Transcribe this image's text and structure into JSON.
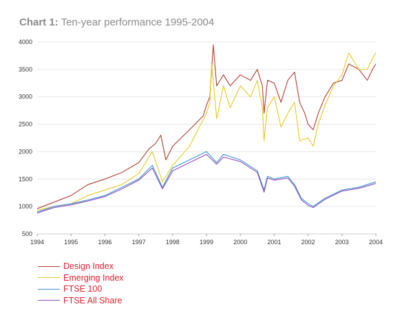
{
  "title": {
    "prefix": "Chart 1:",
    "text": "Ten-year performance 1995-2004"
  },
  "chart_data": {
    "type": "line",
    "title": "Ten-year performance 1995-2004",
    "xlabel": "",
    "ylabel": "",
    "xlim": [
      1994,
      2004
    ],
    "ylim": [
      500,
      4000
    ],
    "x_ticks": [
      "1994",
      "1995",
      "1996",
      "1997",
      "1998",
      "1999",
      "2000",
      "2001",
      "2002",
      "2003",
      "2004"
    ],
    "y_ticks": [
      "500",
      "1000",
      "1500",
      "2000",
      "2500",
      "3000",
      "3500",
      "4000"
    ],
    "grid": true,
    "legend_position": "bottom-left",
    "series": [
      {
        "name": "Design Index",
        "color": "#b03a2e",
        "points": [
          [
            1994.0,
            960
          ],
          [
            1994.5,
            1080
          ],
          [
            1995.0,
            1200
          ],
          [
            1995.5,
            1400
          ],
          [
            1996.0,
            1500
          ],
          [
            1996.5,
            1620
          ],
          [
            1997.0,
            1800
          ],
          [
            1997.3,
            2050
          ],
          [
            1997.5,
            2150
          ],
          [
            1997.65,
            2300
          ],
          [
            1997.8,
            1850
          ],
          [
            1998.0,
            2100
          ],
          [
            1998.5,
            2400
          ],
          [
            1998.9,
            2650
          ],
          [
            1999.0,
            2850
          ],
          [
            1999.1,
            3000
          ],
          [
            1999.2,
            3950
          ],
          [
            1999.3,
            3200
          ],
          [
            1999.5,
            3400
          ],
          [
            1999.7,
            3200
          ],
          [
            2000.0,
            3400
          ],
          [
            2000.3,
            3300
          ],
          [
            2000.5,
            3500
          ],
          [
            2000.65,
            3200
          ],
          [
            2000.7,
            2700
          ],
          [
            2000.8,
            3300
          ],
          [
            2001.0,
            3250
          ],
          [
            2001.2,
            2900
          ],
          [
            2001.4,
            3300
          ],
          [
            2001.6,
            3450
          ],
          [
            2001.75,
            2900
          ],
          [
            2001.9,
            2700
          ],
          [
            2002.0,
            2500
          ],
          [
            2002.15,
            2400
          ],
          [
            2002.3,
            2700
          ],
          [
            2002.5,
            3000
          ],
          [
            2002.75,
            3250
          ],
          [
            2003.0,
            3300
          ],
          [
            2003.2,
            3600
          ],
          [
            2003.5,
            3500
          ],
          [
            2003.75,
            3300
          ],
          [
            2003.9,
            3500
          ],
          [
            2004.0,
            3600
          ]
        ]
      },
      {
        "name": "Emerging Index",
        "color": "#e6c81e",
        "points": [
          [
            1994.0,
            930
          ],
          [
            1994.5,
            1000
          ],
          [
            1995.0,
            1050
          ],
          [
            1995.5,
            1200
          ],
          [
            1996.0,
            1300
          ],
          [
            1996.5,
            1400
          ],
          [
            1997.0,
            1600
          ],
          [
            1997.4,
            2000
          ],
          [
            1997.7,
            1450
          ],
          [
            1998.0,
            1750
          ],
          [
            1998.5,
            2100
          ],
          [
            1999.0,
            2700
          ],
          [
            1999.1,
            2900
          ],
          [
            1999.15,
            3600
          ],
          [
            1999.3,
            2600
          ],
          [
            1999.5,
            3200
          ],
          [
            1999.7,
            2800
          ],
          [
            2000.0,
            3200
          ],
          [
            2000.3,
            3000
          ],
          [
            2000.5,
            3300
          ],
          [
            2000.65,
            2800
          ],
          [
            2000.7,
            2200
          ],
          [
            2000.8,
            2800
          ],
          [
            2001.0,
            3000
          ],
          [
            2001.2,
            2450
          ],
          [
            2001.4,
            2700
          ],
          [
            2001.6,
            2900
          ],
          [
            2001.75,
            2200
          ],
          [
            2002.0,
            2250
          ],
          [
            2002.15,
            2100
          ],
          [
            2002.3,
            2500
          ],
          [
            2002.5,
            2850
          ],
          [
            2002.75,
            3200
          ],
          [
            2003.0,
            3400
          ],
          [
            2003.2,
            3800
          ],
          [
            2003.5,
            3500
          ],
          [
            2003.75,
            3500
          ],
          [
            2003.9,
            3700
          ],
          [
            2004.0,
            3800
          ]
        ]
      },
      {
        "name": "FTSE 100",
        "color": "#3d8fd6",
        "points": [
          [
            1994.0,
            900
          ],
          [
            1994.5,
            1000
          ],
          [
            1995.0,
            1050
          ],
          [
            1995.5,
            1120
          ],
          [
            1996.0,
            1200
          ],
          [
            1996.5,
            1350
          ],
          [
            1997.0,
            1500
          ],
          [
            1997.4,
            1750
          ],
          [
            1997.7,
            1350
          ],
          [
            1998.0,
            1700
          ],
          [
            1998.5,
            1850
          ],
          [
            1999.0,
            2000
          ],
          [
            1999.3,
            1800
          ],
          [
            1999.5,
            1950
          ],
          [
            2000.0,
            1850
          ],
          [
            2000.5,
            1650
          ],
          [
            2000.7,
            1300
          ],
          [
            2000.8,
            1550
          ],
          [
            2001.0,
            1500
          ],
          [
            2001.4,
            1550
          ],
          [
            2001.6,
            1400
          ],
          [
            2001.8,
            1150
          ],
          [
            2002.0,
            1050
          ],
          [
            2002.15,
            1000
          ],
          [
            2002.5,
            1150
          ],
          [
            2003.0,
            1300
          ],
          [
            2003.5,
            1350
          ],
          [
            2004.0,
            1450
          ]
        ]
      },
      {
        "name": "FTSE All Share",
        "color": "#8a4fb8",
        "points": [
          [
            1994.0,
            880
          ],
          [
            1994.5,
            980
          ],
          [
            1995.0,
            1030
          ],
          [
            1995.5,
            1100
          ],
          [
            1996.0,
            1180
          ],
          [
            1996.5,
            1320
          ],
          [
            1997.0,
            1480
          ],
          [
            1997.4,
            1700
          ],
          [
            1997.7,
            1320
          ],
          [
            1998.0,
            1650
          ],
          [
            1998.5,
            1800
          ],
          [
            1999.0,
            1950
          ],
          [
            1999.3,
            1770
          ],
          [
            1999.5,
            1900
          ],
          [
            2000.0,
            1820
          ],
          [
            2000.5,
            1620
          ],
          [
            2000.7,
            1260
          ],
          [
            2000.8,
            1520
          ],
          [
            2001.0,
            1480
          ],
          [
            2001.4,
            1520
          ],
          [
            2001.6,
            1370
          ],
          [
            2001.8,
            1120
          ],
          [
            2002.0,
            1020
          ],
          [
            2002.15,
            980
          ],
          [
            2002.5,
            1130
          ],
          [
            2003.0,
            1280
          ],
          [
            2003.5,
            1330
          ],
          [
            2004.0,
            1420
          ]
        ]
      }
    ]
  },
  "legend": [
    {
      "label": "Design Index",
      "color": "#b03a2e"
    },
    {
      "label": "Emerging Index",
      "color": "#e6c81e"
    },
    {
      "label": "FTSE 100",
      "color": "#3d8fd6"
    },
    {
      "label": "FTSE All Share",
      "color": "#8a4fb8"
    }
  ]
}
